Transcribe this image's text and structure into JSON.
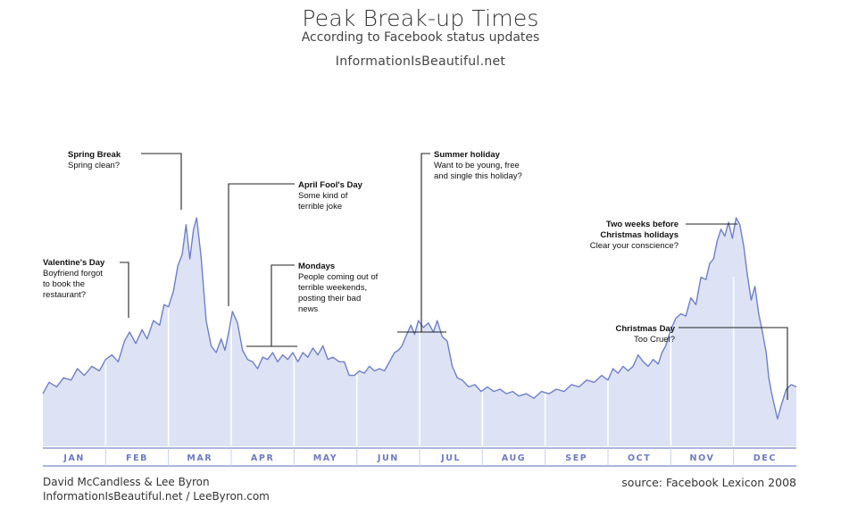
{
  "header": {
    "title": "Peak Break-up Times",
    "subtitle": "According to Facebook status updates",
    "site": "InformationIsBeautiful.net"
  },
  "footer": {
    "credit_line1": "David McCandless & Lee Byron",
    "credit_line2": "InformationIsBeautiful.net / LeeByron.com",
    "source": "source: Facebook Lexicon 2008"
  },
  "colors": {
    "area_fill": "#dde3f4",
    "line": "#6f7fcb",
    "axis": "#8f9bd6",
    "annotation": "#222222"
  },
  "chart_data": {
    "type": "area",
    "title": "Peak Break-up Times",
    "subtitle": "According to Facebook status updates",
    "xlabel": "",
    "ylabel": "",
    "x_range": [
      0,
      12
    ],
    "ylim": [
      0,
      100
    ],
    "grid": false,
    "month_ticks": [
      "JAN",
      "FEB",
      "MAR",
      "APR",
      "MAY",
      "JUN",
      "JUL",
      "AUG",
      "SEP",
      "OCT",
      "NOV",
      "DEC"
    ],
    "series": [
      {
        "points": [
          [
            0.0,
            23
          ],
          [
            0.1,
            28
          ],
          [
            0.22,
            26
          ],
          [
            0.33,
            30
          ],
          [
            0.45,
            29
          ],
          [
            0.55,
            34
          ],
          [
            0.66,
            31
          ],
          [
            0.78,
            35
          ],
          [
            0.9,
            33
          ],
          [
            1.0,
            38
          ],
          [
            1.1,
            40
          ],
          [
            1.2,
            37
          ],
          [
            1.3,
            46
          ],
          [
            1.38,
            50
          ],
          [
            1.48,
            45
          ],
          [
            1.58,
            51
          ],
          [
            1.66,
            47
          ],
          [
            1.76,
            55
          ],
          [
            1.86,
            53
          ],
          [
            1.93,
            62
          ],
          [
            2.0,
            61
          ],
          [
            2.08,
            68
          ],
          [
            2.15,
            79
          ],
          [
            2.22,
            84
          ],
          [
            2.28,
            97
          ],
          [
            2.34,
            82
          ],
          [
            2.4,
            95
          ],
          [
            2.45,
            100
          ],
          [
            2.52,
            83
          ],
          [
            2.6,
            55
          ],
          [
            2.68,
            44
          ],
          [
            2.76,
            41
          ],
          [
            2.84,
            47
          ],
          [
            2.9,
            42
          ],
          [
            2.96,
            50
          ],
          [
            3.02,
            59
          ],
          [
            3.1,
            54
          ],
          [
            3.18,
            42
          ],
          [
            3.26,
            38
          ],
          [
            3.34,
            37
          ],
          [
            3.42,
            34
          ],
          [
            3.5,
            39
          ],
          [
            3.58,
            38
          ],
          [
            3.66,
            41
          ],
          [
            3.74,
            37
          ],
          [
            3.82,
            40
          ],
          [
            3.9,
            38
          ],
          [
            3.98,
            41
          ],
          [
            4.06,
            37
          ],
          [
            4.14,
            41
          ],
          [
            4.22,
            39
          ],
          [
            4.3,
            43
          ],
          [
            4.38,
            40
          ],
          [
            4.46,
            44
          ],
          [
            4.54,
            38
          ],
          [
            4.62,
            39
          ],
          [
            4.72,
            37
          ],
          [
            4.8,
            37
          ],
          [
            4.88,
            31
          ],
          [
            4.96,
            31
          ],
          [
            5.04,
            33
          ],
          [
            5.12,
            32
          ],
          [
            5.2,
            35
          ],
          [
            5.28,
            33
          ],
          [
            5.36,
            34
          ],
          [
            5.44,
            33
          ],
          [
            5.52,
            37
          ],
          [
            5.6,
            41
          ],
          [
            5.66,
            42
          ],
          [
            5.72,
            44
          ],
          [
            5.78,
            48
          ],
          [
            5.86,
            53
          ],
          [
            5.92,
            49
          ],
          [
            5.98,
            55
          ],
          [
            6.06,
            52
          ],
          [
            6.14,
            54
          ],
          [
            6.22,
            50
          ],
          [
            6.28,
            55
          ],
          [
            6.36,
            48
          ],
          [
            6.44,
            46
          ],
          [
            6.52,
            35
          ],
          [
            6.6,
            30
          ],
          [
            6.68,
            29
          ],
          [
            6.78,
            26
          ],
          [
            6.88,
            27
          ],
          [
            6.98,
            24
          ],
          [
            7.08,
            26
          ],
          [
            7.18,
            24
          ],
          [
            7.28,
            25
          ],
          [
            7.38,
            23
          ],
          [
            7.48,
            24
          ],
          [
            7.58,
            22
          ],
          [
            7.7,
            23
          ],
          [
            7.82,
            21
          ],
          [
            7.94,
            24
          ],
          [
            8.06,
            23
          ],
          [
            8.18,
            25
          ],
          [
            8.3,
            24
          ],
          [
            8.42,
            27
          ],
          [
            8.54,
            26
          ],
          [
            8.66,
            29
          ],
          [
            8.78,
            28
          ],
          [
            8.9,
            31
          ],
          [
            9.0,
            29
          ],
          [
            9.08,
            34
          ],
          [
            9.16,
            32
          ],
          [
            9.24,
            35
          ],
          [
            9.32,
            33
          ],
          [
            9.4,
            35
          ],
          [
            9.48,
            40
          ],
          [
            9.56,
            37
          ],
          [
            9.64,
            35
          ],
          [
            9.72,
            38
          ],
          [
            9.8,
            36
          ],
          [
            9.86,
            41
          ],
          [
            9.92,
            44
          ],
          [
            10.0,
            51
          ],
          [
            10.08,
            56
          ],
          [
            10.16,
            58
          ],
          [
            10.24,
            57
          ],
          [
            10.32,
            65
          ],
          [
            10.4,
            62
          ],
          [
            10.48,
            74
          ],
          [
            10.56,
            73
          ],
          [
            10.62,
            80
          ],
          [
            10.68,
            82
          ],
          [
            10.74,
            90
          ],
          [
            10.8,
            95
          ],
          [
            10.86,
            92
          ],
          [
            10.92,
            98
          ],
          [
            10.98,
            91
          ],
          [
            11.04,
            100
          ],
          [
            11.1,
            97
          ],
          [
            11.16,
            88
          ],
          [
            11.22,
            75
          ],
          [
            11.28,
            64
          ],
          [
            11.34,
            70
          ],
          [
            11.4,
            58
          ],
          [
            11.46,
            50
          ],
          [
            11.52,
            41
          ],
          [
            11.56,
            30
          ],
          [
            11.6,
            24
          ],
          [
            11.64,
            19
          ],
          [
            11.7,
            12
          ],
          [
            11.76,
            18
          ],
          [
            11.84,
            25
          ],
          [
            11.92,
            27
          ],
          [
            12.0,
            26
          ]
        ]
      }
    ],
    "annotations": [
      {
        "id": "valentines",
        "title": "Valentine's Day",
        "lines": [
          "Boyfriend forgot",
          "to book the",
          "restaurant?"
        ]
      },
      {
        "id": "spring-break",
        "title": "Spring Break",
        "lines": [
          "Spring clean?"
        ]
      },
      {
        "id": "april-fools",
        "title": "April Fool's Day",
        "lines": [
          "Some kind of",
          "terrible joke"
        ]
      },
      {
        "id": "mondays",
        "title": "Mondays",
        "lines": [
          "People coming out of",
          "terrible weekends,",
          "posting their bad",
          "news"
        ]
      },
      {
        "id": "summer-holiday",
        "title": "Summer holiday",
        "lines": [
          "Want to be young, free",
          "and single this holiday?"
        ]
      },
      {
        "id": "two-weeks",
        "title": "Two weeks before",
        "title2": "Christmas holidays",
        "lines": [
          "Clear your conscience?"
        ]
      },
      {
        "id": "christmas",
        "title": "Christmas Day",
        "lines": [
          "Too Cruel?"
        ]
      }
    ]
  }
}
